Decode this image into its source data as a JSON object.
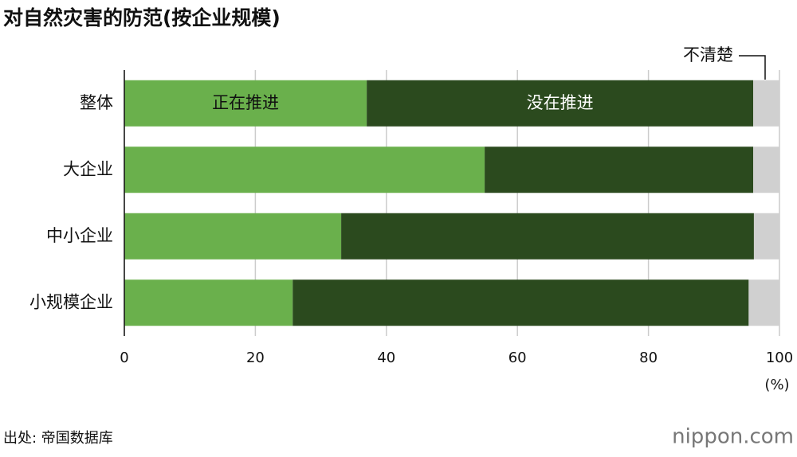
{
  "chart_data": {
    "type": "stacked-bar-horizontal",
    "title": "对自然灾害的防范(按企业规模)",
    "categories": [
      "整体",
      "大企业",
      "中小企业",
      "小规模企业"
    ],
    "series": [
      {
        "name": "正在推进",
        "color": "#6ab04c",
        "values": [
          37.0,
          55.0,
          33.1,
          25.7
        ]
      },
      {
        "name": "没在推进",
        "color": "#2b4a1e",
        "values": [
          59.0,
          41.0,
          63.0,
          69.6
        ]
      },
      {
        "name": "不清楚",
        "color": "#d0d0d0",
        "values": [
          4.0,
          4.0,
          3.9,
          4.7
        ]
      }
    ],
    "xlim": [
      0,
      100
    ],
    "xticks": [
      0,
      20,
      40,
      60,
      80,
      100
    ],
    "xlabel": "(%)",
    "grid": true,
    "source": "出处: 帝国数据库",
    "logo": "nippon.com"
  }
}
